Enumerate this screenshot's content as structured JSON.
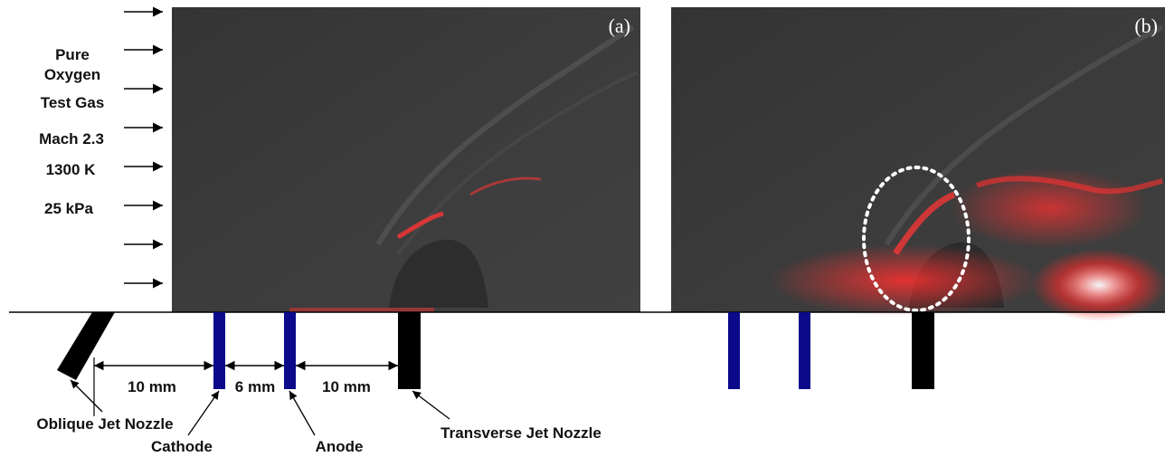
{
  "panels": [
    {
      "tag": "(a)"
    },
    {
      "tag": "(b)"
    }
  ],
  "conditions": {
    "lines": [
      "Pure",
      "Oxygen",
      "Test Gas",
      "Mach 2.3",
      "1300 K",
      "25 kPa"
    ]
  },
  "dimensions": {
    "d1": "10 mm",
    "d2": "6 mm",
    "d3": "10 mm"
  },
  "components": {
    "oblique_nozzle": "Oblique Jet Nozzle",
    "cathode": "Cathode",
    "anode": "Anode",
    "transverse_nozzle": "Transverse Jet Nozzle"
  },
  "colors": {
    "electrode": "#0a0a8a",
    "nozzle": "#000000",
    "luminosity": "#ff2a2a",
    "background_image": "#3a3a3a"
  }
}
